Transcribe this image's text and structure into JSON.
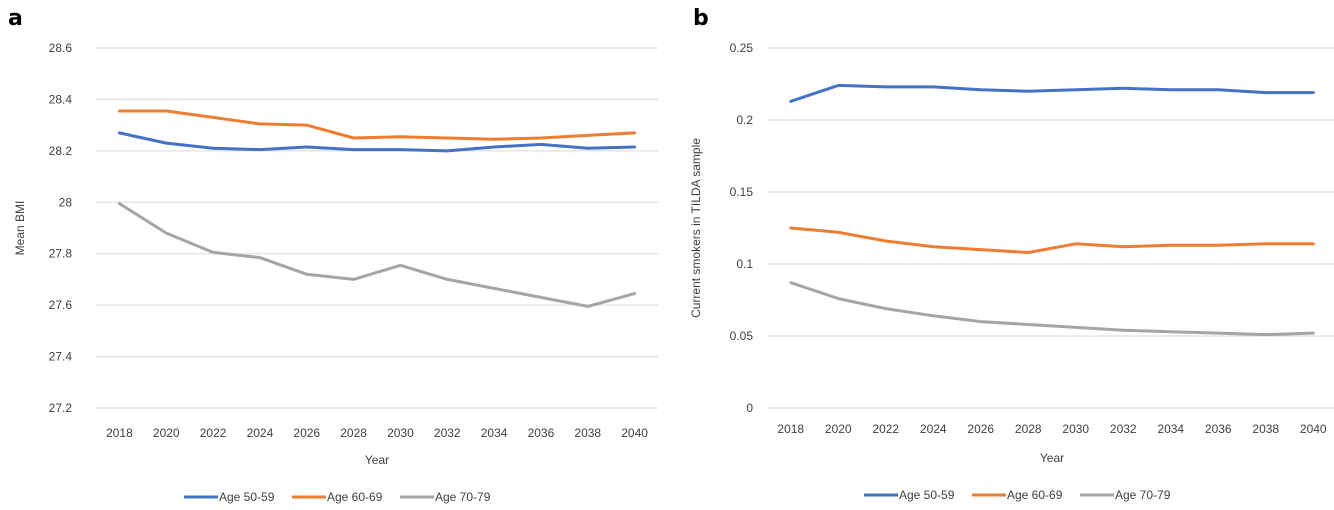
{
  "colors": {
    "series": [
      "#4472C4",
      "#ED7D31",
      "#A5A5A5"
    ],
    "grid": "#D9D9D9"
  },
  "panels": [
    {
      "letter": "a"
    },
    {
      "letter": "b"
    }
  ],
  "chart_data": [
    {
      "type": "line",
      "panel": "a",
      "xlabel": "Year",
      "ylabel": "Mean BMI",
      "categories": [
        "2018",
        "2020",
        "2022",
        "2024",
        "2026",
        "2028",
        "2030",
        "2032",
        "2034",
        "2036",
        "2038",
        "2040"
      ],
      "ylim": [
        27.2,
        28.6
      ],
      "yticks": [
        27.2,
        27.4,
        27.6,
        27.8,
        28,
        28.2,
        28.4,
        28.6
      ],
      "ytick_labels": [
        "27.2",
        "27.4",
        "27.6",
        "27.8",
        "28",
        "28.2",
        "28.4",
        "28.6"
      ],
      "grid": true,
      "legend": "bottom",
      "series": [
        {
          "name": "Age 50-59",
          "values": [
            28.27,
            28.23,
            28.21,
            28.205,
            28.215,
            28.205,
            28.205,
            28.2,
            28.215,
            28.225,
            28.21,
            28.215
          ]
        },
        {
          "name": "Age 60-69",
          "values": [
            28.355,
            28.355,
            28.33,
            28.305,
            28.3,
            28.25,
            28.255,
            28.25,
            28.245,
            28.25,
            28.26,
            28.27
          ]
        },
        {
          "name": "Age 70-79",
          "values": [
            27.995,
            27.88,
            27.805,
            27.785,
            27.72,
            27.7,
            27.755,
            27.7,
            27.665,
            27.63,
            27.595,
            27.645
          ]
        }
      ]
    },
    {
      "type": "line",
      "panel": "b",
      "xlabel": "Year",
      "ylabel": "Current smokers in TILDA sample",
      "categories": [
        "2018",
        "2020",
        "2022",
        "2024",
        "2026",
        "2028",
        "2030",
        "2032",
        "2034",
        "2036",
        "2038",
        "2040"
      ],
      "ylim": [
        0,
        0.25
      ],
      "yticks": [
        0,
        0.05,
        0.1,
        0.15,
        0.2,
        0.25
      ],
      "ytick_labels": [
        "0",
        "0.05",
        "0.1",
        "0.15",
        "0.2",
        "0.25"
      ],
      "grid": true,
      "legend": "bottom",
      "series": [
        {
          "name": "Age 50-59",
          "values": [
            0.213,
            0.224,
            0.223,
            0.223,
            0.221,
            0.22,
            0.221,
            0.222,
            0.221,
            0.221,
            0.219,
            0.219
          ]
        },
        {
          "name": "Age 60-69",
          "values": [
            0.125,
            0.122,
            0.116,
            0.112,
            0.11,
            0.108,
            0.114,
            0.112,
            0.113,
            0.113,
            0.114,
            0.114
          ]
        },
        {
          "name": "Age 70-79",
          "values": [
            0.087,
            0.076,
            0.069,
            0.064,
            0.06,
            0.058,
            0.056,
            0.054,
            0.053,
            0.052,
            0.051,
            0.052
          ]
        }
      ]
    }
  ]
}
